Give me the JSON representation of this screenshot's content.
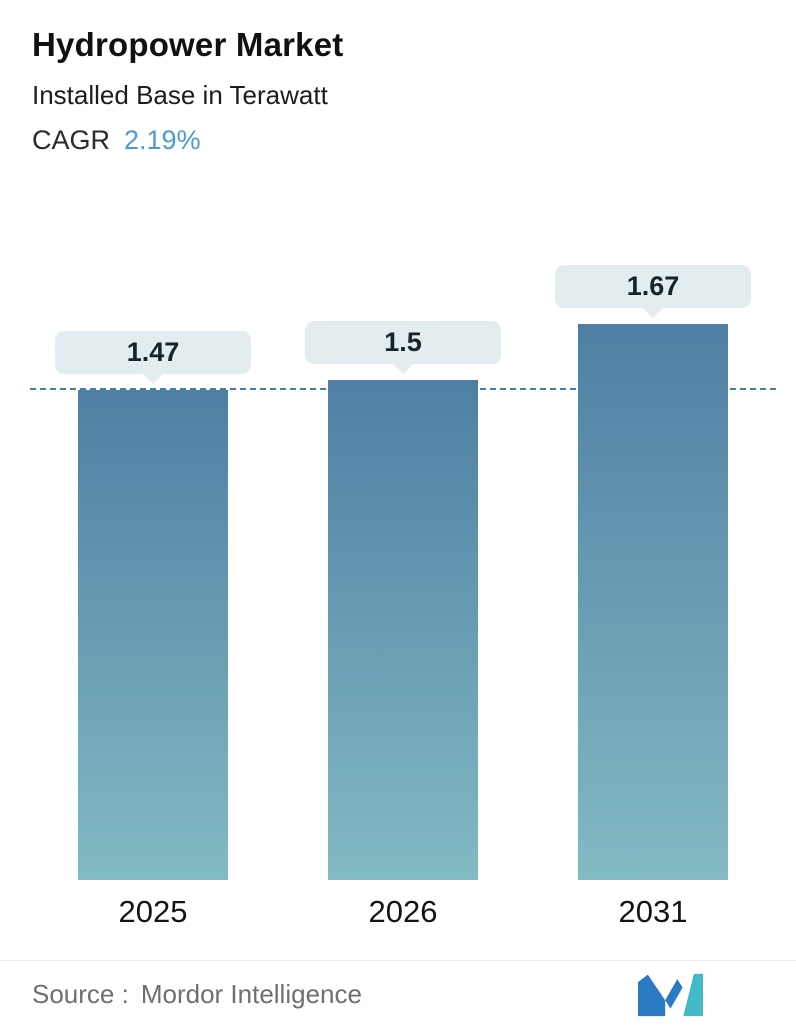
{
  "header": {
    "title": "Hydropower Market",
    "subtitle": "Installed Base in Terawatt",
    "cagr_label": "CAGR",
    "cagr_value": "2.19%"
  },
  "chart_data": {
    "type": "bar",
    "title": "Hydropower Market",
    "subtitle": "Installed Base in Terawatt",
    "cagr": "2.19%",
    "unit": "Terawatt",
    "categories": [
      "2025",
      "2026",
      "2031"
    ],
    "values": [
      1.47,
      1.5,
      1.67
    ],
    "value_labels": [
      "1.47",
      "1.5",
      "1.67"
    ],
    "reference_value": 1.47,
    "xlabel": "",
    "ylabel": "",
    "ylim": [
      0,
      1.95
    ],
    "grid": false,
    "legend": false,
    "reference_line_style": "dashed"
  },
  "colors": {
    "accent_blue": "#4D9CD0",
    "title_text": "#111111",
    "bar_top": "#4F7FA3",
    "bar_bottom": "#82BAC3",
    "callout_bg": "#E3ECEE",
    "callout_text": "#16242C",
    "dash_line": "#44809F",
    "source_text": "#6F6F6F",
    "logo_blue": "#2B7BC2",
    "logo_teal": "#41B9C6"
  },
  "footer": {
    "source_label": "Source :",
    "source_value": "Mordor Intelligence"
  },
  "icons": {
    "logo": "mordor-intelligence-logo"
  }
}
